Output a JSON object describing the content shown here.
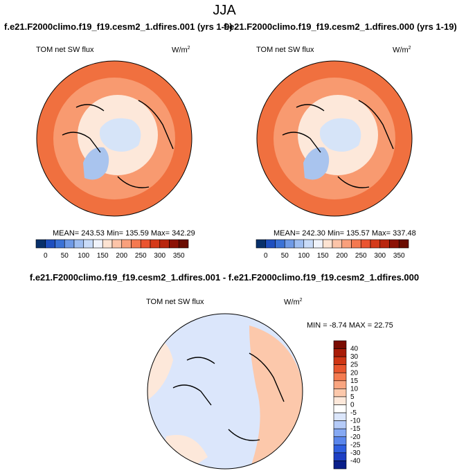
{
  "page_title": "JJA",
  "case_a_title": "f.e21.F2000climo.f19_f19.cesm2_1.dfires.001 (yrs 1-9)",
  "case_b_title": "f.e21.F2000climo.f19_f19.cesm2_1.dfires.000 (yrs 1-19)",
  "diff_title": "f.e21.F2000climo.f19_f19.cesm2_1.dfires.001 - f.e21.F2000climo.f19_f19.cesm2_1.dfires.000",
  "panels": [
    {
      "variable": "TOM net SW flux",
      "units": "W/m",
      "units_exp": "2",
      "stats": "MEAN= 243.53  Min= 135.59  Max= 342.29"
    },
    {
      "variable": "TOM net SW flux",
      "units": "W/m",
      "units_exp": "2",
      "stats": "MEAN= 242.30  Min= 135.57  Max= 337.48"
    },
    {
      "variable": "TOM net SW flux",
      "units": "W/m",
      "units_exp": "2",
      "stats": "MIN =  -8.74  MAX =  22.75"
    }
  ],
  "colorbar_main": {
    "colors": [
      "#08306b",
      "#1e4fbf",
      "#3b72d6",
      "#6f9ae6",
      "#9fbef1",
      "#c9dbf8",
      "#f0f3fb",
      "#fde3d2",
      "#fcc4a8",
      "#f9a07c",
      "#f47950",
      "#ea5430",
      "#d43a1a",
      "#b8260e",
      "#8c1105",
      "#6a0c02"
    ],
    "tick_labels": [
      "0",
      "50",
      "100",
      "150",
      "200",
      "250",
      "300",
      "350"
    ]
  },
  "colorbar_diff": {
    "colors": [
      "#0a1f8a",
      "#1d3fc4",
      "#2f5fe0",
      "#5a86ec",
      "#86a9f3",
      "#b5cbf8",
      "#dbe6fb",
      "#ffffff",
      "#fde8da",
      "#fcc8ab",
      "#f9a580",
      "#f47b50",
      "#e8552d",
      "#cf3514",
      "#a91c08",
      "#7a0c02"
    ],
    "tick_labels": [
      "40",
      "30",
      "25",
      "20",
      "15",
      "10",
      "5",
      "0",
      "-5",
      "-10",
      "-15",
      "-20",
      "-25",
      "-30",
      "-40"
    ]
  },
  "map_colors": {
    "ocean_warm": "#f0703f",
    "ocean_mid": "#f89a70",
    "arctic_pale": "#fde8da",
    "ice": "#d6e4f8",
    "greenland": "#a9c4ee",
    "diff_base": "#dbe6fb",
    "diff_warm": "#fcc8ab",
    "coast": "#000000"
  }
}
